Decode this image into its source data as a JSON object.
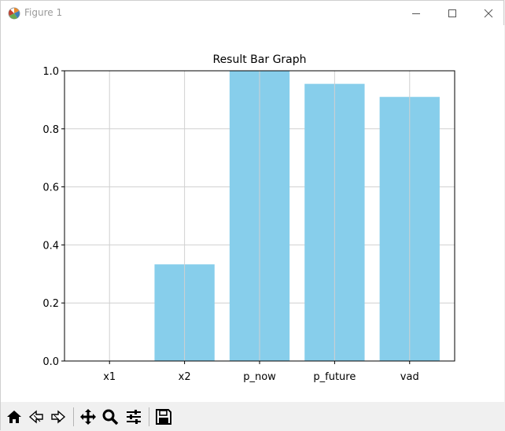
{
  "window": {
    "title": "Figure 1"
  },
  "toolbar": {
    "buttons": [
      {
        "name": "home-button",
        "icon": "home-icon"
      },
      {
        "name": "back-button",
        "icon": "back-arrow-icon"
      },
      {
        "name": "forward-button",
        "icon": "forward-arrow-icon"
      },
      {
        "name": "pan-button",
        "icon": "move-icon"
      },
      {
        "name": "zoom-button",
        "icon": "magnifier-icon"
      },
      {
        "name": "subplots-button",
        "icon": "sliders-icon"
      },
      {
        "name": "save-button",
        "icon": "floppy-disk-icon"
      }
    ]
  },
  "chart_data": {
    "type": "bar",
    "title": "Result Bar Graph",
    "categories": [
      "x1",
      "x2",
      "p_now",
      "p_future",
      "vad"
    ],
    "values": [
      0.0,
      0.333,
      1.0,
      0.955,
      0.91
    ],
    "ylim": [
      0,
      1.0
    ],
    "yticks": [
      "0.0",
      "0.2",
      "0.4",
      "0.6",
      "0.8",
      "1.0"
    ],
    "xlabel": "",
    "ylabel": "",
    "grid": true,
    "bar_color": "#87ceeb"
  }
}
